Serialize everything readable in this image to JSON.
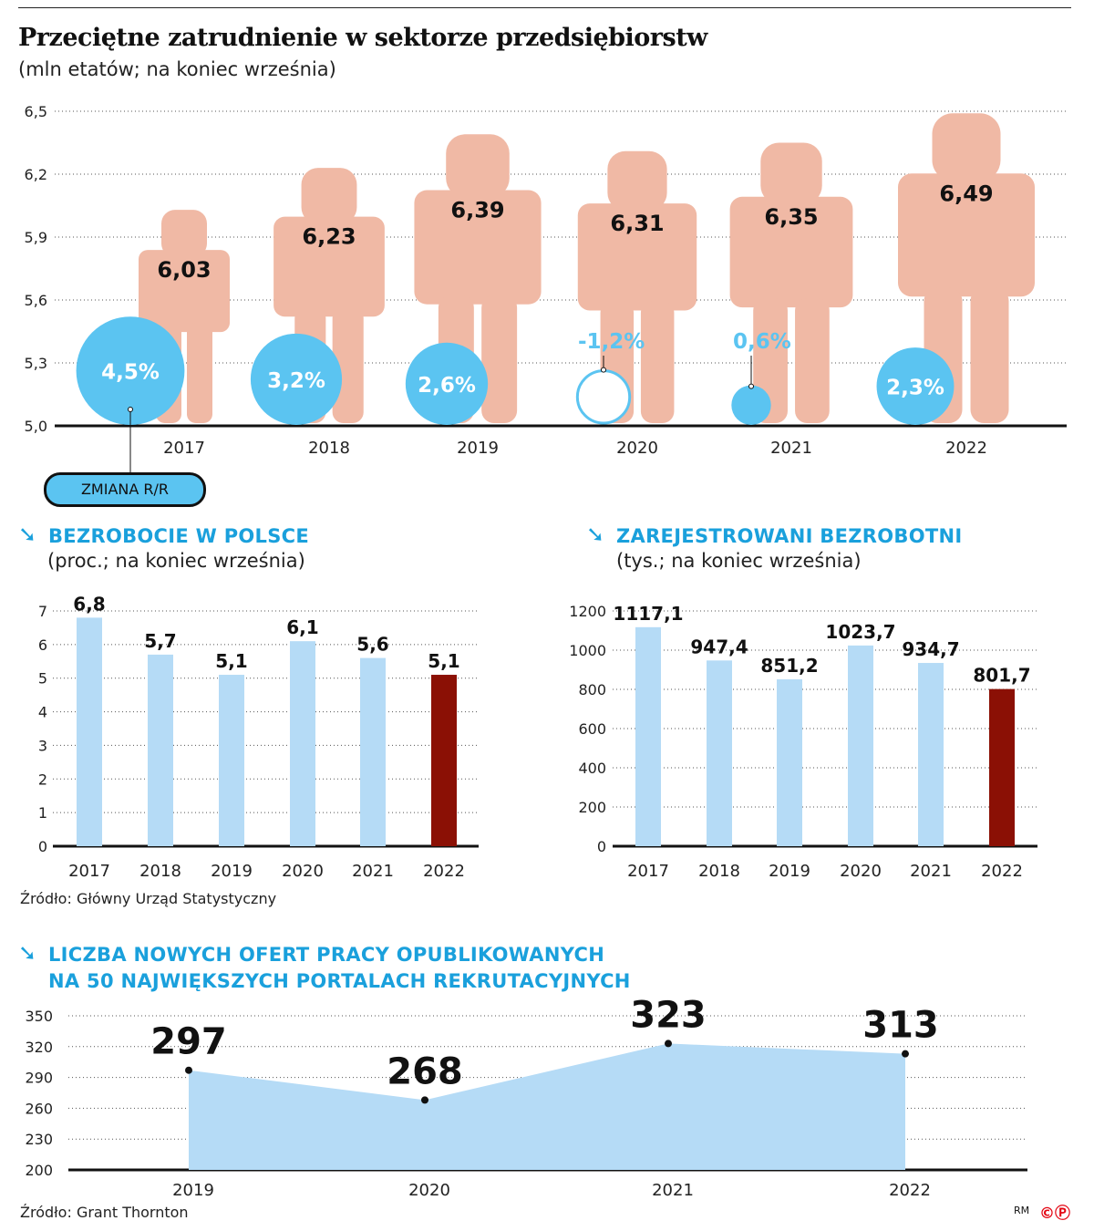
{
  "title": "Przeciętne zatrudnienie w sektorze przedsiębiorstw",
  "subtitle": "(mln etatów; na koniec września)",
  "legend_label": "ZMIANA R/R",
  "source_gus": "Źródło: Główny Urząd Statystyczny",
  "source_gt": "Źródło: Grant Thornton",
  "credits": {
    "initials": "RM",
    "copyright": "©",
    "p": "Ⓟ"
  },
  "colors": {
    "person": "#f0b9a5",
    "circle": "#5bc4f1",
    "bar": "#b5dbf6",
    "bar_highlight": "#8b1005",
    "accent": "#1aa0dc",
    "area": "#b5dbf6"
  },
  "chart_data": [
    {
      "type": "pictogram",
      "title": "Przeciętne zatrudnienie w sektorze przedsiębiorstw",
      "subtitle": "(mln etatów; na koniec września)",
      "categories": [
        "2017",
        "2018",
        "2019",
        "2020",
        "2021",
        "2022"
      ],
      "values": [
        6.03,
        6.23,
        6.39,
        6.31,
        6.35,
        6.49
      ],
      "value_labels": [
        "6,03",
        "6,23",
        "6,39",
        "6,31",
        "6,35",
        "6,49"
      ],
      "change": [
        4.5,
        3.2,
        2.6,
        -1.2,
        0.6,
        2.3
      ],
      "change_labels": [
        "4,5%",
        "3,2%",
        "2,6%",
        "-1,2%",
        "0,6%",
        "2,3%"
      ],
      "ylim": [
        5.0,
        6.5
      ],
      "yticks": [
        "5,0",
        "5,3",
        "5,6",
        "5,9",
        "6,2",
        "6,5"
      ],
      "grid": true
    },
    {
      "type": "bar",
      "title": "BEZROBOCIE W POLSCE",
      "subtitle": "(proc.; na koniec września)",
      "categories": [
        "2017",
        "2018",
        "2019",
        "2020",
        "2021",
        "2022"
      ],
      "values": [
        6.8,
        5.7,
        5.1,
        6.1,
        5.6,
        5.1
      ],
      "value_labels": [
        "6,8",
        "5,7",
        "5,1",
        "6,1",
        "5,6",
        "5,1"
      ],
      "ylim": [
        0,
        7
      ],
      "yticks": [
        "0",
        "1",
        "2",
        "3",
        "4",
        "5",
        "6",
        "7"
      ],
      "highlight": "2022",
      "grid": true
    },
    {
      "type": "bar",
      "title": "ZAREJESTROWANI BEZROBOTNI",
      "subtitle": "(tys.; na koniec września)",
      "categories": [
        "2017",
        "2018",
        "2019",
        "2020",
        "2021",
        "2022"
      ],
      "values": [
        1117.1,
        947.4,
        851.2,
        1023.7,
        934.7,
        801.7
      ],
      "value_labels": [
        "1117,1",
        "947,4",
        "851,2",
        "1023,7",
        "934,7",
        "801,7"
      ],
      "ylim": [
        0,
        1200
      ],
      "yticks": [
        "0",
        "200",
        "400",
        "600",
        "800",
        "1000",
        "1200"
      ],
      "highlight": "2022",
      "grid": true
    },
    {
      "type": "area",
      "title_lines": [
        "LICZBA NOWYCH OFERT PRACY OPUBLIKOWANYCH",
        "NA 50 NAJWIĘKSZYCH PORTALACH REKRUTACYJNYCH"
      ],
      "categories": [
        "2019",
        "2020",
        "2021",
        "2022"
      ],
      "values": [
        297,
        268,
        323,
        313
      ],
      "value_labels": [
        "297",
        "268",
        "323",
        "313"
      ],
      "ylim": [
        200,
        350
      ],
      "yticks": [
        "200",
        "230",
        "260",
        "290",
        "320",
        "350"
      ],
      "grid": true
    }
  ]
}
